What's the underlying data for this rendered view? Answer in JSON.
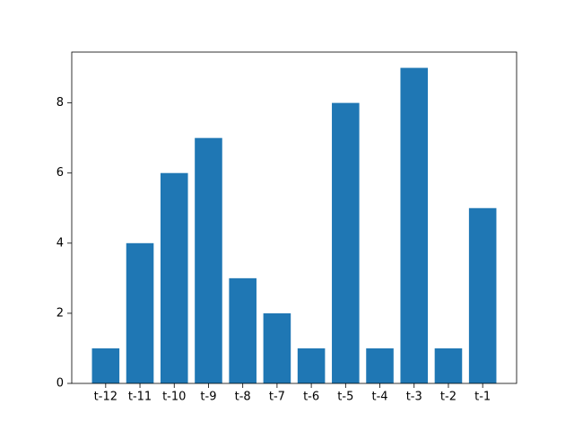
{
  "chart_data": {
    "type": "bar",
    "categories": [
      "t-12",
      "t-11",
      "t-10",
      "t-9",
      "t-8",
      "t-7",
      "t-6",
      "t-5",
      "t-4",
      "t-3",
      "t-2",
      "t-1"
    ],
    "values": [
      1,
      4,
      6,
      7,
      3,
      2,
      1,
      8,
      1,
      9,
      1,
      5
    ],
    "color": "#1f77b4",
    "ylim": [
      0,
      9.45
    ],
    "yticks": [
      0,
      2,
      4,
      6,
      8
    ],
    "grid": false
  }
}
